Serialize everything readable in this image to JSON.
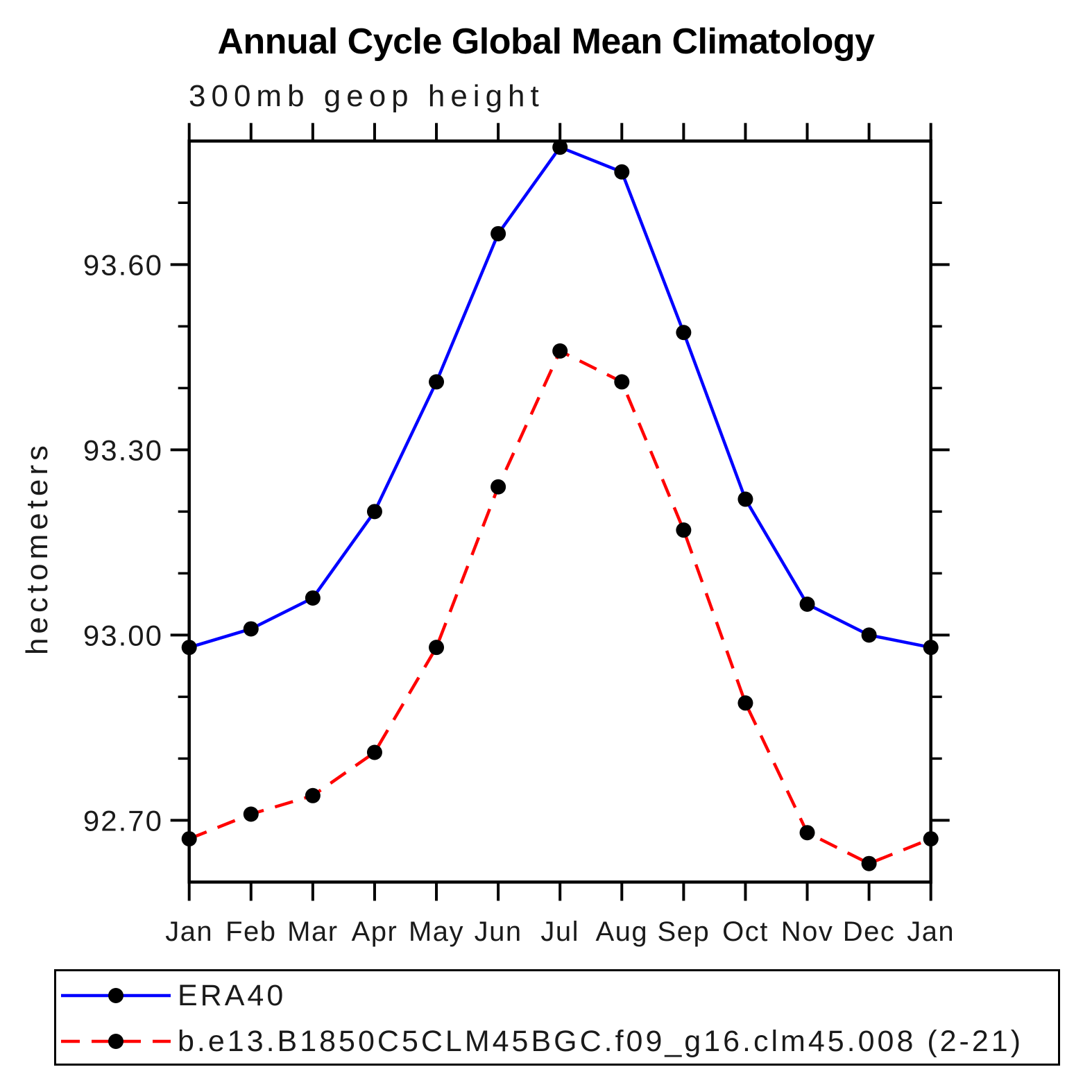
{
  "title": "Annual Cycle Global Mean Climatology",
  "subtitle": "300mb geop height",
  "chart_data": {
    "type": "line",
    "title": "Annual Cycle Global Mean Climatology",
    "subtitle": "300mb geop height",
    "xlabel": "",
    "ylabel": "hectometers",
    "categories": [
      "Jan",
      "Feb",
      "Mar",
      "Apr",
      "May",
      "Jun",
      "Jul",
      "Aug",
      "Sep",
      "Oct",
      "Nov",
      "Dec",
      "Jan"
    ],
    "series": [
      {
        "name": "ERA40",
        "color": "#0000ff",
        "line_style": "solid",
        "marker": "circle",
        "marker_color": "#000000",
        "values": [
          92.98,
          93.01,
          93.06,
          93.2,
          93.41,
          93.65,
          93.79,
          93.75,
          93.49,
          93.22,
          93.05,
          93.0,
          92.98
        ]
      },
      {
        "name": "b.e13.B1850C5CLM45BGC.f09_g16.clm45.008 (2-21)",
        "color": "#ff0000",
        "line_style": "dashed",
        "marker": "circle",
        "marker_color": "#000000",
        "values": [
          92.67,
          92.71,
          92.74,
          92.81,
          92.98,
          93.24,
          93.46,
          93.41,
          93.17,
          92.89,
          92.68,
          92.63,
          92.67
        ]
      }
    ],
    "ylim": [
      92.6,
      93.8
    ],
    "yticks_major": [
      92.7,
      93.0,
      93.3,
      93.6
    ],
    "ytick_labels": [
      "92.70",
      "93.00",
      "93.30",
      "93.60"
    ],
    "yticks_minor": [
      92.8,
      92.9,
      93.1,
      93.2,
      93.4,
      93.5,
      93.7
    ],
    "grid": false,
    "axis_color": "#000000",
    "legend_position": "bottom-left-box"
  },
  "legend": {
    "items": [
      {
        "label": "ERA40",
        "color": "#0000ff",
        "line_style": "solid",
        "marker_color": "#000000"
      },
      {
        "label": "b.e13.B1850C5CLM45BGC.f09_g16.clm45.008 (2-21)",
        "color": "#ff0000",
        "line_style": "dashed",
        "marker_color": "#000000"
      }
    ]
  },
  "colors": {
    "background": "#ffffff",
    "axis": "#000000",
    "series_era40": "#0000ff",
    "series_model": "#ff0000",
    "marker": "#000000"
  }
}
